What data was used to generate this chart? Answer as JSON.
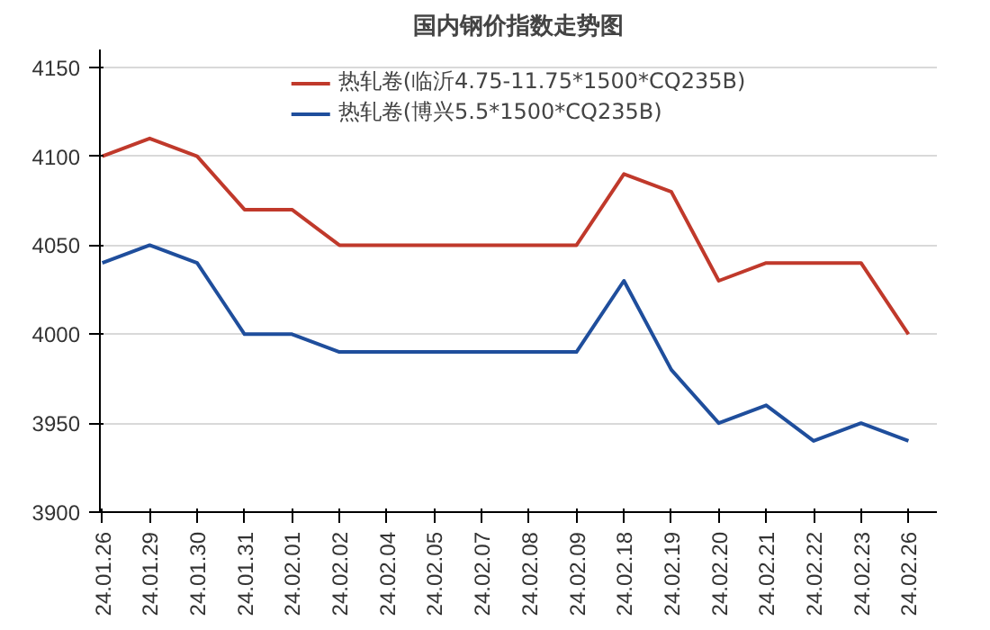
{
  "chart_data": {
    "type": "line",
    "title": "国内钢价指数走势图",
    "categories": [
      "24.01.26",
      "24.01.29",
      "24.01.30",
      "24.01.31",
      "24.02.01",
      "24.02.02",
      "24.02.04",
      "24.02.05",
      "24.02.07",
      "24.02.08",
      "24.02.09",
      "24.02.18",
      "24.02.19",
      "24.02.20",
      "24.02.21",
      "24.02.22",
      "24.02.23",
      "24.02.26"
    ],
    "series": [
      {
        "name": "热轧卷(临沂4.75-11.75*1500*CQ235B)",
        "color": "#c0392b",
        "values": [
          4100,
          4110,
          4100,
          4070,
          4070,
          4050,
          4050,
          4050,
          4050,
          4050,
          4050,
          4090,
          4080,
          4030,
          4040,
          4040,
          4040,
          4000
        ]
      },
      {
        "name": "热轧卷(博兴5.5*1500*CQ235B)",
        "color": "#1f4e9c",
        "values": [
          4040,
          4050,
          4040,
          4000,
          4000,
          3990,
          3990,
          3990,
          3990,
          3990,
          3990,
          4030,
          3980,
          3950,
          3960,
          3940,
          3950,
          3940
        ]
      }
    ],
    "ylim": [
      3900,
      4160
    ],
    "yticks": [
      3900,
      3950,
      4000,
      4050,
      4100,
      4150
    ],
    "grid": "y",
    "legend": "top",
    "marker": "none",
    "line_style": "solid"
  }
}
